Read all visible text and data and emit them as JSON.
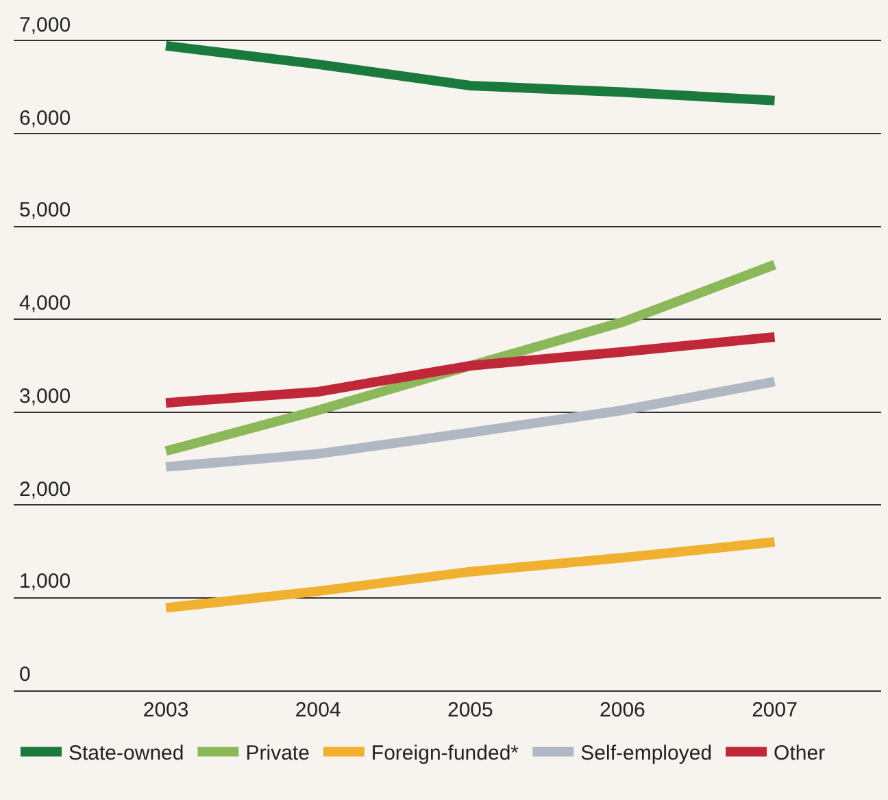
{
  "chart_data": {
    "type": "line",
    "x": [
      2003,
      2004,
      2005,
      2006,
      2007
    ],
    "series": [
      {
        "name": "State-owned",
        "color": "#1a7a3e",
        "values": [
          6950,
          6750,
          6520,
          6450,
          6360
        ]
      },
      {
        "name": "Private",
        "color": "#8db85a",
        "values": [
          2580,
          3020,
          3500,
          3970,
          4590
        ]
      },
      {
        "name": "Foreign-funded*",
        "color": "#f0b030",
        "values": [
          890,
          1070,
          1280,
          1430,
          1600
        ]
      },
      {
        "name": "Self-employed",
        "color": "#b0b8c4",
        "values": [
          2410,
          2550,
          2780,
          3020,
          3330
        ]
      },
      {
        "name": "Other",
        "color": "#c0283a",
        "values": [
          3100,
          3220,
          3500,
          3650,
          3810
        ]
      }
    ],
    "xlim": [
      2002,
      2007.7
    ],
    "xticks": [
      2003,
      2004,
      2005,
      2006,
      2007
    ],
    "ylim": [
      0,
      7000
    ],
    "yticks": [
      {
        "value": 0,
        "label": "0"
      },
      {
        "value": 1000,
        "label": "1,000"
      },
      {
        "value": 2000,
        "label": "2,000"
      },
      {
        "value": 3000,
        "label": "3,000"
      },
      {
        "value": 4000,
        "label": "4,000"
      },
      {
        "value": 5000,
        "label": "5,000"
      },
      {
        "value": 6000,
        "label": "6,000"
      },
      {
        "value": 7000,
        "label": "7,000"
      }
    ],
    "grid": "y",
    "legend": "bottom",
    "marker": "none",
    "line_style": "solid"
  }
}
